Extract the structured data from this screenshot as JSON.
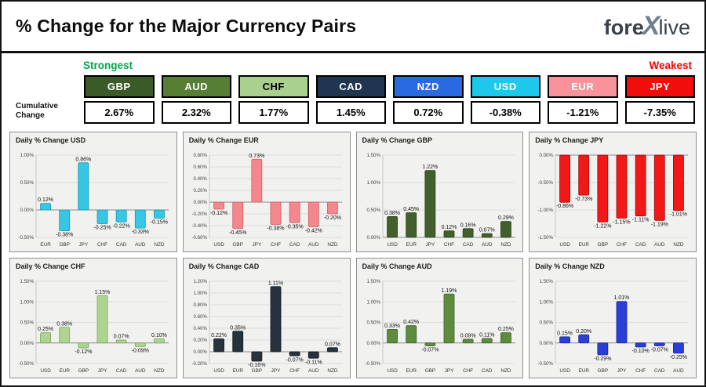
{
  "header": {
    "title": "% Change for the Major Currency Pairs",
    "logo": {
      "part1": "fore",
      "x": "X",
      "part2": "live"
    }
  },
  "labels": {
    "strongest": "Strongest",
    "weakest": "Weakest",
    "cumulative_line1": "Cumulative",
    "cumulative_line2": "Change",
    "strongest_color": "#00a651",
    "weakest_color": "#fe0000"
  },
  "summary": [
    {
      "currency": "GBP",
      "value": "2.67%",
      "bg": "#3a5a28",
      "fg": "#ffffff"
    },
    {
      "currency": "AUD",
      "value": "2.32%",
      "bg": "#567f35",
      "fg": "#ffffff"
    },
    {
      "currency": "CHF",
      "value": "1.77%",
      "bg": "#a9d08e",
      "fg": "#000000"
    },
    {
      "currency": "CAD",
      "value": "1.45%",
      "bg": "#1f3550",
      "fg": "#ffffff"
    },
    {
      "currency": "NZD",
      "value": "0.72%",
      "bg": "#2a6ae0",
      "fg": "#ffffff"
    },
    {
      "currency": "USD",
      "value": "-0.38%",
      "bg": "#1ec8ea",
      "fg": "#ffffff"
    },
    {
      "currency": "EUR",
      "value": "-1.21%",
      "bg": "#f8929b",
      "fg": "#ffffff"
    },
    {
      "currency": "JPY",
      "value": "-7.35%",
      "bg": "#f20d0d",
      "fg": "#ffffff"
    }
  ],
  "chart_data": [
    {
      "type": "bar",
      "title": "Daily % Change USD",
      "categories": [
        "EUR",
        "GBP",
        "JPY",
        "CHF",
        "CAD",
        "AUD",
        "NZD"
      ],
      "values": [
        0.12,
        -0.38,
        0.86,
        -0.25,
        -0.22,
        -0.33,
        -0.15
      ],
      "labels": [
        "0.12%",
        "-0.38%",
        "0.86%",
        "-0.25%",
        "-0.22%",
        "-0.33%",
        "-0.15%"
      ],
      "bar_color": "#35c7e3",
      "bar_stroke": "#1795b3",
      "ylim": [
        -0.5,
        1.0
      ],
      "yticks": [
        1.0,
        0.5,
        0.0,
        -0.5
      ],
      "ytick_labels": [
        "1.00%",
        "0.50%",
        "0.00%",
        "-0.50%"
      ]
    },
    {
      "type": "bar",
      "title": "Daily % Change EUR",
      "categories": [
        "USD",
        "GBP",
        "JPY",
        "CHF",
        "CAD",
        "AUD",
        "NZD"
      ],
      "values": [
        -0.12,
        -0.45,
        0.73,
        -0.38,
        -0.35,
        -0.42,
        -0.2
      ],
      "labels": [
        "-0.12%",
        "-0.45%",
        "0.73%",
        "-0.38%",
        "-0.35%",
        "-0.42%",
        "-0.20%"
      ],
      "bar_color": "#f4868e",
      "bar_stroke": "#d05b66",
      "ylim": [
        -0.6,
        0.8
      ],
      "yticks": [
        0.8,
        0.6,
        0.4,
        0.2,
        0.0,
        -0.2,
        -0.4,
        -0.6
      ],
      "ytick_labels": [
        "0.80%",
        "0.60%",
        "0.40%",
        "0.20%",
        "0.00%",
        "-0.20%",
        "-0.40%",
        "-0.60%"
      ]
    },
    {
      "type": "bar",
      "title": "Daily % Change GBP",
      "categories": [
        "USD",
        "EUR",
        "JPY",
        "CHF",
        "CAD",
        "AUD",
        "NZD"
      ],
      "values": [
        0.38,
        0.45,
        1.22,
        0.12,
        0.16,
        0.07,
        0.29
      ],
      "labels": [
        "0.38%",
        "0.45%",
        "1.22%",
        "0.12%",
        "0.16%",
        "0.07%",
        "0.29%"
      ],
      "bar_color": "#41602c",
      "bar_stroke": "#293e17",
      "ylim": [
        0,
        1.5
      ],
      "yticks": [
        1.5,
        1.0,
        0.5,
        0.0
      ],
      "ytick_labels": [
        "1.50%",
        "1.00%",
        "0.50%",
        "0.00%"
      ]
    },
    {
      "type": "bar",
      "title": "Daily % Change JPY",
      "categories": [
        "USD",
        "EUR",
        "GBP",
        "CHF",
        "CAD",
        "AUD",
        "NZD"
      ],
      "values": [
        -0.86,
        -0.73,
        -1.22,
        -1.15,
        -1.11,
        -1.19,
        -1.01
      ],
      "labels": [
        "-0.86%",
        "-0.73%",
        "-1.22%",
        "-1.15%",
        "-1.11%",
        "-1.19%",
        "-1.01%"
      ],
      "bar_color": "#f21818",
      "bar_stroke": "#9e0606",
      "ylim": [
        -1.5,
        0
      ],
      "yticks": [
        0.0,
        -0.5,
        -1.0,
        -1.5
      ],
      "ytick_labels": [
        "0.00%",
        "-0.50%",
        "-1.00%",
        "-1.50%"
      ]
    },
    {
      "type": "bar",
      "title": "Daily % Change CHF",
      "categories": [
        "USD",
        "EUR",
        "GBP",
        "JPY",
        "CAD",
        "AUD",
        "NZD"
      ],
      "values": [
        0.25,
        0.38,
        -0.12,
        1.15,
        0.07,
        -0.09,
        0.1
      ],
      "labels": [
        "0.25%",
        "0.38%",
        "-0.12%",
        "1.15%",
        "0.07%",
        "-0.09%",
        "0.10%"
      ],
      "bar_color": "#aed492",
      "bar_stroke": "#7ba55c",
      "ylim": [
        -0.5,
        1.5
      ],
      "yticks": [
        1.5,
        1.0,
        0.5,
        0.0,
        -0.5
      ],
      "ytick_labels": [
        "1.50%",
        "1.00%",
        "0.50%",
        "0.00%",
        "-0.50%"
      ]
    },
    {
      "type": "bar",
      "title": "Daily % Change CAD",
      "categories": [
        "USD",
        "EUR",
        "GBP",
        "JPY",
        "CHF",
        "AUD",
        "NZD"
      ],
      "values": [
        0.22,
        0.35,
        -0.16,
        1.11,
        -0.07,
        -0.11,
        0.07
      ],
      "labels": [
        "0.22%",
        "0.35%",
        "-0.16%",
        "1.11%",
        "-0.07%",
        "-0.11%",
        "0.07%"
      ],
      "bar_color": "#26333f",
      "bar_stroke": "#0e161e",
      "ylim": [
        -0.2,
        1.2
      ],
      "yticks": [
        1.2,
        1.0,
        0.8,
        0.6,
        0.4,
        0.2,
        0.0,
        -0.2
      ],
      "ytick_labels": [
        "1.20%",
        "1.00%",
        "0.80%",
        "0.60%",
        "0.40%",
        "0.20%",
        "0.00%",
        "-0.20%"
      ]
    },
    {
      "type": "bar",
      "title": "Daily % Change AUD",
      "categories": [
        "USD",
        "EUR",
        "GBP",
        "JPY",
        "CHF",
        "CAD",
        "NZD"
      ],
      "values": [
        0.33,
        0.42,
        -0.07,
        1.19,
        0.09,
        0.11,
        0.25
      ],
      "labels": [
        "0.33%",
        "0.42%",
        "-0.07%",
        "1.19%",
        "0.09%",
        "0.11%",
        "0.25%"
      ],
      "bar_color": "#5c8c3e",
      "bar_stroke": "#3d5f27",
      "ylim": [
        -0.5,
        1.5
      ],
      "yticks": [
        1.5,
        1.0,
        0.5,
        0.0,
        -0.5
      ],
      "ytick_labels": [
        "1.50%",
        "1.00%",
        "0.50%",
        "0.00%",
        "-0.50%"
      ]
    },
    {
      "type": "bar",
      "title": "Daily % Change NZD",
      "categories": [
        "USD",
        "EUR",
        "GBP",
        "JPY",
        "CHF",
        "CAD",
        "AUD"
      ],
      "values": [
        0.15,
        0.2,
        -0.29,
        1.01,
        -0.1,
        -0.07,
        -0.25
      ],
      "labels": [
        "0.15%",
        "0.20%",
        "-0.29%",
        "1.01%",
        "-0.10%",
        "-0.07%",
        "-0.25%"
      ],
      "bar_color": "#2c3ed8",
      "bar_stroke": "#17249b",
      "ylim": [
        -0.5,
        1.5
      ],
      "yticks": [
        1.5,
        1.0,
        0.5,
        0.0,
        -0.5
      ],
      "ytick_labels": [
        "1.50%",
        "1.00%",
        "0.50%",
        "0.00%",
        "-0.50%"
      ]
    }
  ]
}
